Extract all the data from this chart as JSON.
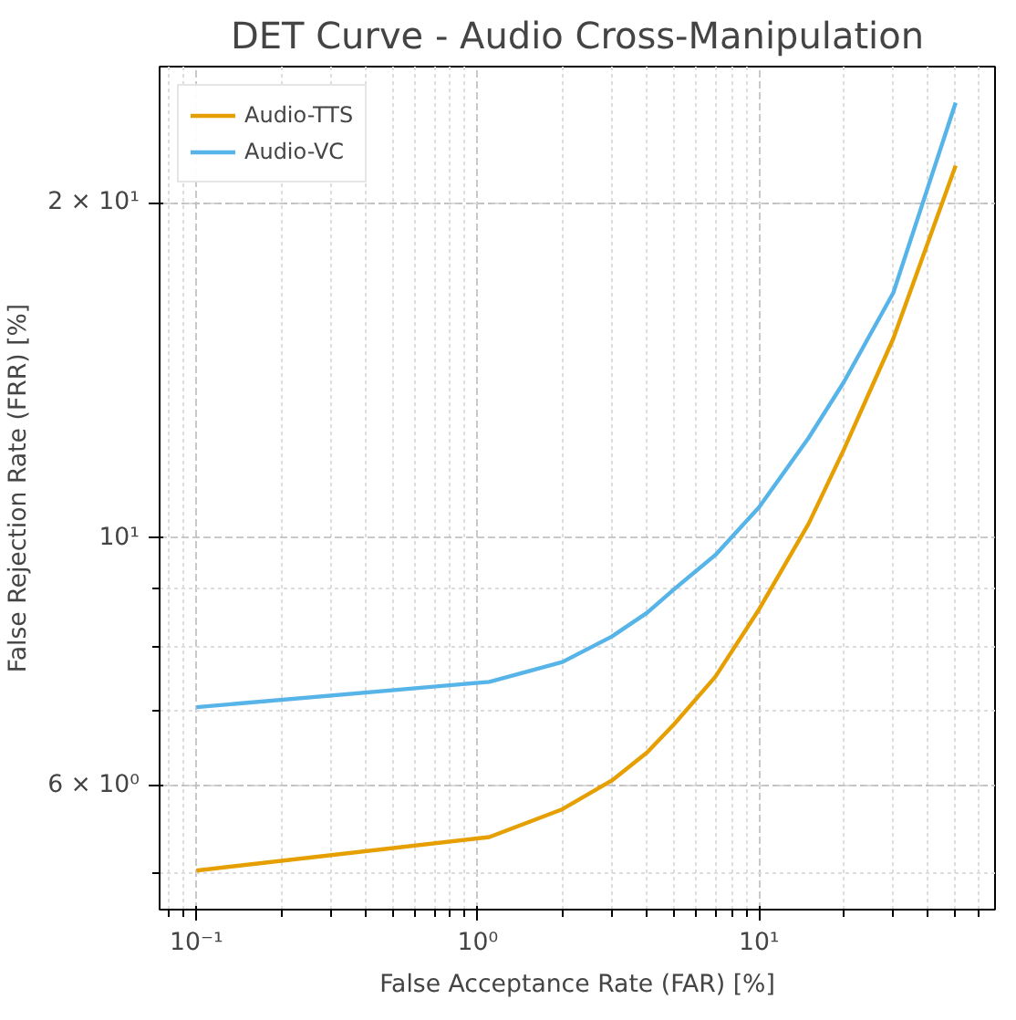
{
  "chart_data": {
    "type": "line",
    "title": "DET Curve - Audio Cross-Manipulation",
    "xlabel": "False Acceptance Rate (FAR) [%]",
    "ylabel": "False Rejection Rate (FRR) [%]",
    "log": "xy",
    "grid": true,
    "legend": "top left",
    "line_style": "solid",
    "xlim": [
      0.074,
      69
    ],
    "ylim": [
      4.64,
      26.5
    ],
    "xticks": [
      {
        "value": 0.1,
        "label": "10⁻¹"
      },
      {
        "value": 1,
        "label": "10⁰"
      },
      {
        "value": 10,
        "label": "10¹"
      }
    ],
    "yticks": [
      {
        "value": 6,
        "label": "6 × 10⁰"
      },
      {
        "value": 10,
        "label": "10¹"
      },
      {
        "value": 20,
        "label": "2 × 10¹"
      }
    ],
    "x": [
      0.1,
      1.1,
      2,
      3,
      4,
      5,
      7,
      10,
      15,
      20,
      30,
      50
    ],
    "series": [
      {
        "name": "Audio-TTS",
        "color": "#e69f00",
        "values": [
          5.03,
          5.39,
          5.71,
          6.06,
          6.42,
          6.81,
          7.51,
          8.63,
          10.3,
          12.0,
          15.1,
          21.6
        ]
      },
      {
        "name": "Audio-VC",
        "color": "#56b4e9",
        "values": [
          7.05,
          7.43,
          7.74,
          8.16,
          8.57,
          9.0,
          9.66,
          10.66,
          12.3,
          13.8,
          16.6,
          24.6
        ]
      }
    ]
  }
}
